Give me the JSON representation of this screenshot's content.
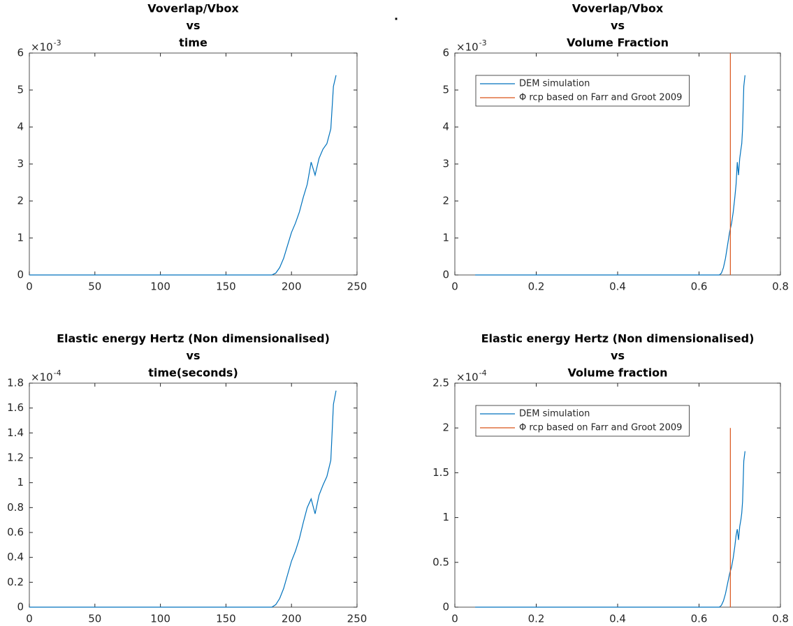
{
  "figure_title": ".",
  "chart_data": [
    {
      "type": "line",
      "title": [
        "Voverlap/Vbox",
        "vs",
        "time"
      ],
      "y_multiplier": "×10",
      "y_multiplier_exponent": "-3",
      "xlim": [
        0,
        250
      ],
      "xticks": [
        0,
        50,
        100,
        150,
        200,
        250
      ],
      "ylim": [
        0,
        6
      ],
      "yticks": [
        0,
        1,
        2,
        3,
        4,
        5,
        6
      ],
      "series": [
        {
          "color": "#0072bd",
          "x": [
            0,
            185,
            188,
            191,
            194,
            197,
            200,
            203,
            206,
            209,
            212,
            215,
            218,
            221,
            224,
            227,
            230,
            232,
            234
          ],
          "values": [
            0,
            0,
            0.05,
            0.2,
            0.45,
            0.8,
            1.15,
            1.4,
            1.7,
            2.1,
            2.45,
            3.05,
            2.7,
            3.15,
            3.4,
            3.55,
            3.95,
            5.1,
            5.4
          ]
        }
      ]
    },
    {
      "type": "line",
      "title": [
        "Voverlap/Vbox",
        "vs",
        "Volume Fraction"
      ],
      "y_multiplier": "×10",
      "y_multiplier_exponent": "-3",
      "xlim": [
        0,
        0.8
      ],
      "xticks": [
        0,
        0.2,
        0.4,
        0.6,
        0.8
      ],
      "ylim": [
        0,
        6
      ],
      "yticks": [
        0,
        1,
        2,
        3,
        4,
        5,
        6
      ],
      "legend": "upper left",
      "series": [
        {
          "name": "DEM simulation",
          "color": "#0072bd",
          "x": [
            0.05,
            0.65,
            0.655,
            0.66,
            0.665,
            0.67,
            0.675,
            0.68,
            0.684,
            0.688,
            0.691,
            0.694,
            0.697,
            0.7,
            0.703,
            0.705,
            0.707,
            0.71,
            0.713
          ],
          "values": [
            0,
            0,
            0.05,
            0.2,
            0.45,
            0.8,
            1.15,
            1.4,
            1.7,
            2.1,
            2.45,
            3.05,
            2.7,
            3.15,
            3.4,
            3.55,
            3.95,
            5.1,
            5.4
          ]
        },
        {
          "name": "Φ rcp based on Farr and Groot 2009",
          "color": "#d95319",
          "x": [
            0.677,
            0.677
          ],
          "values": [
            0,
            6
          ]
        }
      ]
    },
    {
      "type": "line",
      "title": [
        "Elastic energy Hertz (Non dimensionalised)",
        "vs",
        "time(seconds)"
      ],
      "y_multiplier": "×10",
      "y_multiplier_exponent": "-4",
      "xlim": [
        0,
        250
      ],
      "xticks": [
        0,
        50,
        100,
        150,
        200,
        250
      ],
      "ylim": [
        0,
        1.8
      ],
      "yticks": [
        0,
        0.2,
        0.4,
        0.6,
        0.8,
        1,
        1.2,
        1.4,
        1.6,
        1.8
      ],
      "series": [
        {
          "color": "#0072bd",
          "x": [
            0,
            185,
            188,
            191,
            194,
            197,
            200,
            203,
            206,
            209,
            212,
            215,
            218,
            221,
            224,
            227,
            230,
            232,
            234
          ],
          "values": [
            0,
            0,
            0.02,
            0.07,
            0.15,
            0.26,
            0.37,
            0.45,
            0.55,
            0.68,
            0.8,
            0.87,
            0.75,
            0.9,
            0.98,
            1.05,
            1.18,
            1.63,
            1.74
          ]
        }
      ]
    },
    {
      "type": "line",
      "title": [
        "Elastic energy Hertz (Non dimensionalised)",
        "vs",
        "Volume fraction"
      ],
      "y_multiplier": "×10",
      "y_multiplier_exponent": "-4",
      "xlim": [
        0,
        0.8
      ],
      "xticks": [
        0,
        0.2,
        0.4,
        0.6,
        0.8
      ],
      "ylim": [
        0,
        2.5
      ],
      "yticks": [
        0,
        0.5,
        1,
        1.5,
        2,
        2.5
      ],
      "legend": "upper left",
      "series": [
        {
          "name": "DEM simulation",
          "color": "#0072bd",
          "x": [
            0.05,
            0.65,
            0.655,
            0.66,
            0.665,
            0.67,
            0.675,
            0.68,
            0.684,
            0.688,
            0.691,
            0.694,
            0.697,
            0.7,
            0.703,
            0.705,
            0.707,
            0.71,
            0.713
          ],
          "values": [
            0,
            0,
            0.02,
            0.07,
            0.15,
            0.26,
            0.37,
            0.45,
            0.55,
            0.68,
            0.8,
            0.87,
            0.75,
            0.9,
            0.98,
            1.05,
            1.18,
            1.63,
            1.74
          ]
        },
        {
          "name": "Φ rcp based on Farr and Groot 2009",
          "color": "#d95319",
          "x": [
            0.677,
            0.677
          ],
          "values": [
            0,
            2
          ]
        }
      ]
    }
  ]
}
